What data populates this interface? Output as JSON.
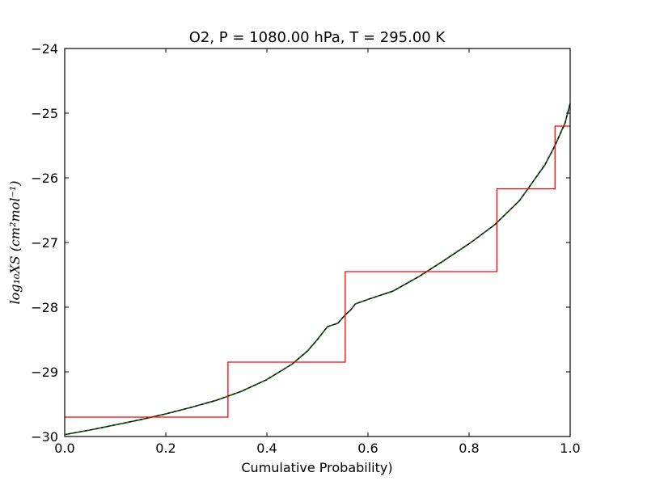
{
  "chart_data": {
    "type": "line",
    "title": "O2, P = 1080.00 hPa, T = 295.00 K",
    "xlabel": "Cumulative Probability)",
    "ylabel": "log₁₀XS (cm²mol⁻¹)",
    "xlim": [
      0.0,
      1.0
    ],
    "ylim": [
      -30,
      -24
    ],
    "xticks": [
      0.0,
      0.2,
      0.4,
      0.6,
      0.8,
      1.0
    ],
    "xtick_labels": [
      "0.0",
      "0.2",
      "0.4",
      "0.6",
      "0.8",
      "1.0"
    ],
    "yticks": [
      -30,
      -29,
      -28,
      -27,
      -26,
      -25,
      -24
    ],
    "ytick_labels": [
      "−30",
      "−29",
      "−28",
      "−27",
      "−26",
      "−25",
      "−24"
    ],
    "grid": false,
    "series": [
      {
        "style": "curve",
        "color": "#000000",
        "overlay_color": "#008000",
        "x": [
          0.0,
          0.05,
          0.1,
          0.15,
          0.2,
          0.25,
          0.3,
          0.35,
          0.4,
          0.45,
          0.48,
          0.5,
          0.52,
          0.54,
          0.555,
          0.565,
          0.575,
          0.6,
          0.65,
          0.7,
          0.75,
          0.8,
          0.85,
          0.9,
          0.95,
          0.97,
          0.99,
          1.0
        ],
        "y": [
          -29.97,
          -29.9,
          -29.82,
          -29.74,
          -29.65,
          -29.55,
          -29.44,
          -29.3,
          -29.12,
          -28.88,
          -28.68,
          -28.5,
          -28.3,
          -28.25,
          -28.12,
          -28.05,
          -27.95,
          -27.88,
          -27.75,
          -27.53,
          -27.28,
          -27.02,
          -26.73,
          -26.35,
          -25.8,
          -25.5,
          -25.15,
          -24.85
        ]
      },
      {
        "style": "step",
        "color": "#ff0000",
        "x": [
          0.0,
          0.323,
          0.323,
          0.555,
          0.555,
          0.855,
          0.855,
          0.97,
          0.97,
          1.0
        ],
        "y": [
          -29.7,
          -29.7,
          -28.85,
          -28.85,
          -27.45,
          -27.45,
          -26.17,
          -26.17,
          -25.2,
          -25.2
        ]
      }
    ]
  }
}
